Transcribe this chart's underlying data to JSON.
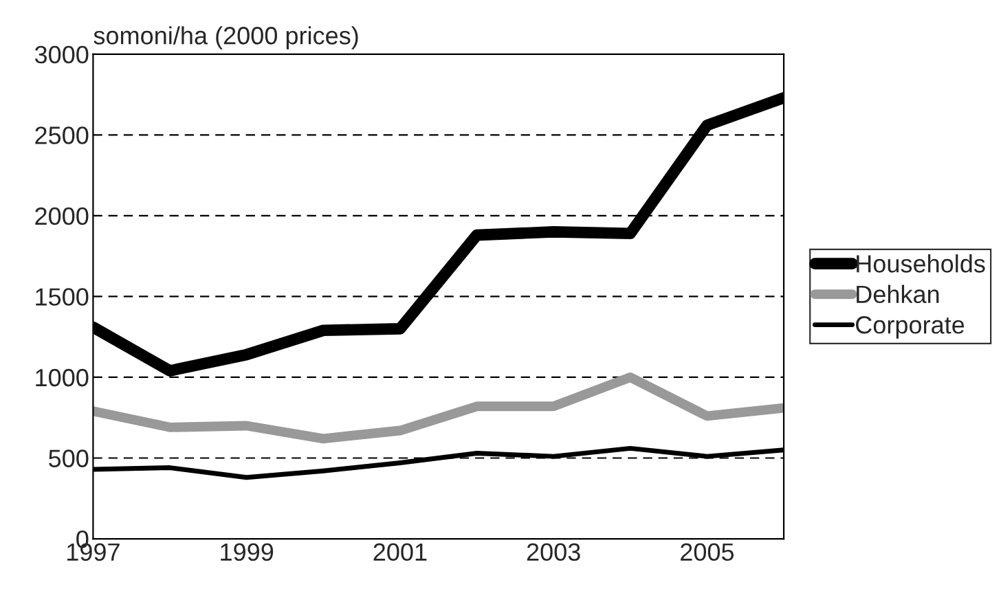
{
  "chart_data": {
    "type": "line",
    "ylabel": "somoni/ha (2000 prices)",
    "x": [
      1997,
      1998,
      1999,
      2000,
      2001,
      2002,
      2003,
      2004,
      2005,
      2006
    ],
    "series": [
      {
        "name": "Households",
        "color": "#000000",
        "values": [
          1310,
          1040,
          1140,
          1290,
          1300,
          1880,
          1900,
          1890,
          2560,
          2730
        ]
      },
      {
        "name": "Dehkan",
        "color": "#999999",
        "values": [
          790,
          690,
          700,
          620,
          670,
          820,
          820,
          1000,
          760,
          810
        ]
      },
      {
        "name": "Corporate",
        "color": "#000000",
        "values": [
          430,
          440,
          380,
          420,
          470,
          530,
          510,
          560,
          510,
          550
        ]
      }
    ],
    "xlim": [
      1997,
      2006
    ],
    "xticks": [
      1997,
      1999,
      2001,
      2003,
      2005
    ],
    "ylim": [
      0,
      3000
    ],
    "yticks": [
      0,
      500,
      1000,
      1500,
      2000,
      2500,
      3000
    ],
    "grid": "y",
    "legend": "right",
    "line_style": "solid",
    "marker": "none"
  }
}
